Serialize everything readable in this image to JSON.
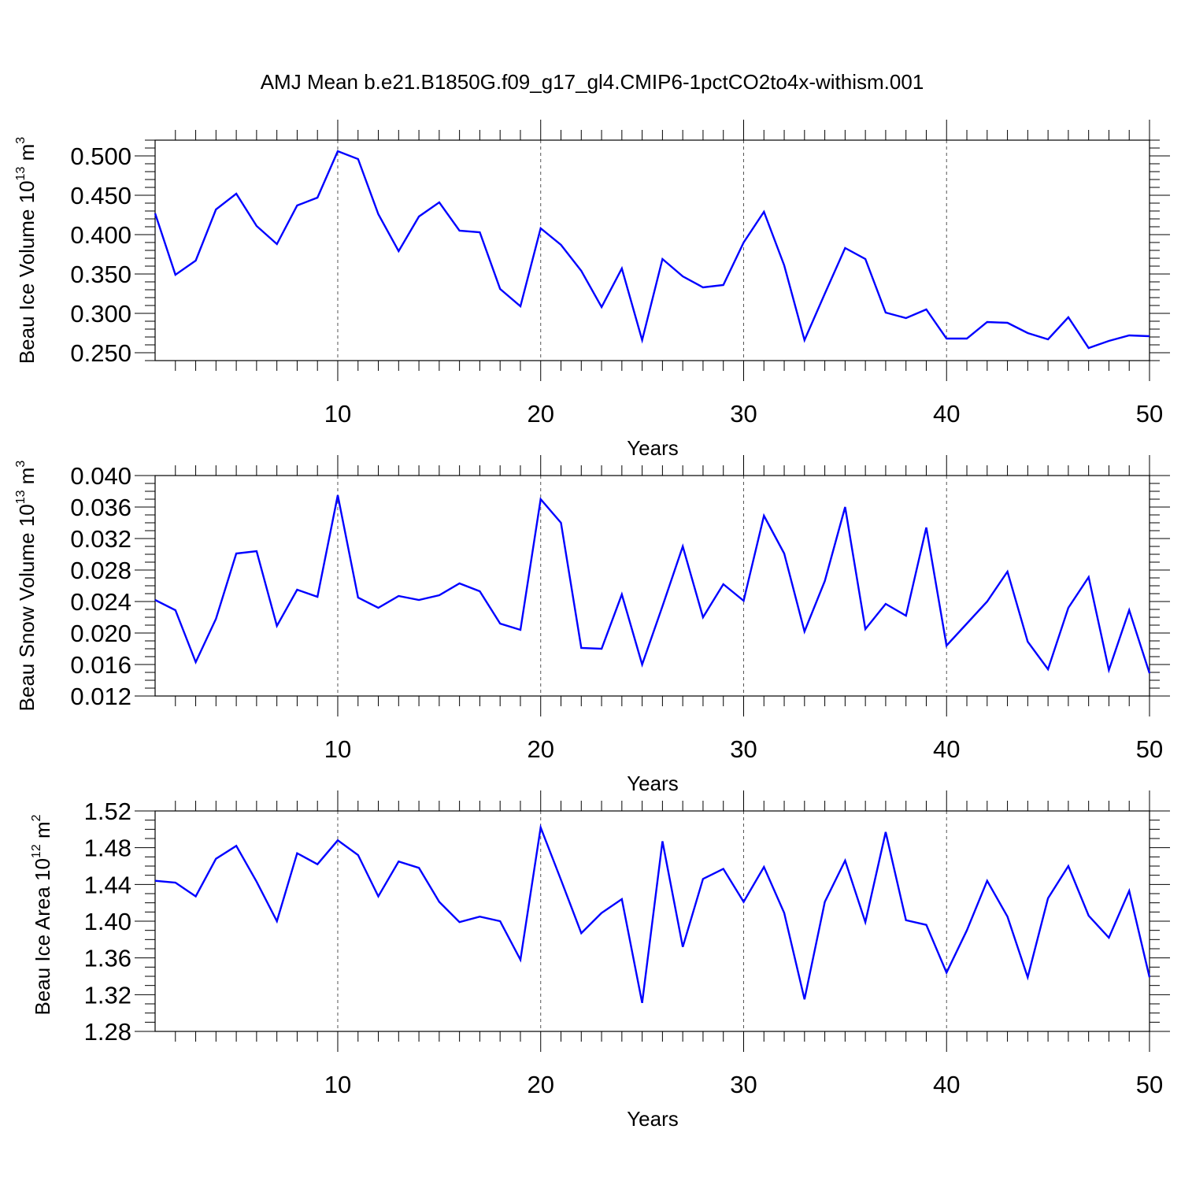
{
  "figure": {
    "title": "AMJ Mean b.e21.B1850G.f09_g17_gl4.CMIP6-1pctCO2to4x-withism.001",
    "line_color": "#0000FF"
  },
  "chart_data": [
    {
      "type": "line",
      "title": "",
      "xlabel": "Years",
      "ylabel": "Beau Ice Volume 10",
      "ylabel_sup": "13",
      "ylabel_unit": " m",
      "ylabel_unit_sup": "3",
      "xlim": [
        1,
        50
      ],
      "ylim": [
        0.24,
        0.52
      ],
      "xticks": [
        10,
        20,
        30,
        40,
        50
      ],
      "xtick_labels": [
        "10",
        "20",
        "30",
        "40",
        "50"
      ],
      "yticks": [
        0.25,
        0.3,
        0.35,
        0.4,
        0.45,
        0.5
      ],
      "ytick_labels": [
        "0.250",
        "0.300",
        "0.350",
        "0.400",
        "0.450",
        "0.500"
      ],
      "y_minor_step": 0.01,
      "vgrid_at": [
        10,
        20,
        30,
        40
      ],
      "x": [
        1,
        2,
        3,
        4,
        5,
        6,
        7,
        8,
        9,
        10,
        11,
        12,
        13,
        14,
        15,
        16,
        17,
        18,
        19,
        20,
        21,
        22,
        23,
        24,
        25,
        26,
        27,
        28,
        29,
        30,
        31,
        32,
        33,
        34,
        35,
        36,
        37,
        38,
        39,
        40,
        41,
        42,
        43,
        44,
        45,
        46,
        47,
        48,
        49,
        50
      ],
      "y": [
        0.427,
        0.349,
        0.367,
        0.432,
        0.452,
        0.411,
        0.388,
        0.437,
        0.447,
        0.506,
        0.496,
        0.426,
        0.379,
        0.423,
        0.441,
        0.405,
        0.403,
        0.331,
        0.309,
        0.408,
        0.387,
        0.354,
        0.308,
        0.357,
        0.266,
        0.369,
        0.347,
        0.333,
        0.336,
        0.39,
        0.429,
        0.361,
        0.266,
        0.325,
        0.383,
        0.369,
        0.301,
        0.294,
        0.305,
        0.268,
        0.268,
        0.289,
        0.288,
        0.275,
        0.267,
        0.295,
        0.256,
        0.265,
        0.272,
        0.271
      ]
    },
    {
      "type": "line",
      "title": "",
      "xlabel": "Years",
      "ylabel": "Beau Snow Volume 10",
      "ylabel_sup": "13",
      "ylabel_unit": " m",
      "ylabel_unit_sup": "3",
      "xlim": [
        1,
        50
      ],
      "ylim": [
        0.012,
        0.04
      ],
      "xticks": [
        10,
        20,
        30,
        40,
        50
      ],
      "xtick_labels": [
        "10",
        "20",
        "30",
        "40",
        "50"
      ],
      "yticks": [
        0.012,
        0.016,
        0.02,
        0.024,
        0.028,
        0.032,
        0.036,
        0.04
      ],
      "ytick_labels": [
        "0.012",
        "0.016",
        "0.020",
        "0.024",
        "0.028",
        "0.032",
        "0.036",
        "0.040"
      ],
      "y_minor_step": 0.001,
      "vgrid_at": [
        10,
        20,
        30,
        40
      ],
      "x": [
        1,
        2,
        3,
        4,
        5,
        6,
        7,
        8,
        9,
        10,
        11,
        12,
        13,
        14,
        15,
        16,
        17,
        18,
        19,
        20,
        21,
        22,
        23,
        24,
        25,
        26,
        27,
        28,
        29,
        30,
        31,
        32,
        33,
        34,
        35,
        36,
        37,
        38,
        39,
        40,
        41,
        42,
        43,
        44,
        45,
        46,
        47,
        48,
        49,
        50
      ],
      "y": [
        0.0242,
        0.0229,
        0.0163,
        0.0218,
        0.0301,
        0.0304,
        0.0209,
        0.0255,
        0.0246,
        0.0375,
        0.0245,
        0.0232,
        0.0247,
        0.0242,
        0.0248,
        0.0263,
        0.0253,
        0.0212,
        0.0204,
        0.037,
        0.034,
        0.0181,
        0.018,
        0.0249,
        0.016,
        0.0234,
        0.031,
        0.022,
        0.0262,
        0.0241,
        0.0349,
        0.0301,
        0.0202,
        0.0266,
        0.036,
        0.0205,
        0.0237,
        0.0222,
        0.0334,
        0.0184,
        0.0212,
        0.024,
        0.0278,
        0.0189,
        0.0154,
        0.0232,
        0.0271,
        0.0153,
        0.0229,
        0.0149
      ]
    },
    {
      "type": "line",
      "title": "",
      "xlabel": "Years",
      "ylabel": "Beau Ice Area 10",
      "ylabel_sup": "12",
      "ylabel_unit": " m",
      "ylabel_unit_sup": "2",
      "xlim": [
        1,
        50
      ],
      "ylim": [
        1.28,
        1.52
      ],
      "xticks": [
        10,
        20,
        30,
        40,
        50
      ],
      "xtick_labels": [
        "10",
        "20",
        "30",
        "40",
        "50"
      ],
      "yticks": [
        1.28,
        1.32,
        1.36,
        1.4,
        1.44,
        1.48,
        1.52
      ],
      "ytick_labels": [
        "1.28",
        "1.32",
        "1.36",
        "1.40",
        "1.44",
        "1.48",
        "1.52"
      ],
      "y_minor_step": 0.01,
      "vgrid_at": [
        10,
        20,
        30,
        40
      ],
      "x": [
        1,
        2,
        3,
        4,
        5,
        6,
        7,
        8,
        9,
        10,
        11,
        12,
        13,
        14,
        15,
        16,
        17,
        18,
        19,
        20,
        21,
        22,
        23,
        24,
        25,
        26,
        27,
        28,
        29,
        30,
        31,
        32,
        33,
        34,
        35,
        36,
        37,
        38,
        39,
        40,
        41,
        42,
        43,
        44,
        45,
        46,
        47,
        48,
        49,
        50
      ],
      "y": [
        1.444,
        1.442,
        1.427,
        1.468,
        1.482,
        1.443,
        1.4,
        1.474,
        1.462,
        1.488,
        1.472,
        1.427,
        1.465,
        1.458,
        1.421,
        1.399,
        1.405,
        1.4,
        1.358,
        1.502,
        1.445,
        1.387,
        1.409,
        1.424,
        1.311,
        1.487,
        1.372,
        1.446,
        1.457,
        1.421,
        1.459,
        1.409,
        1.315,
        1.421,
        1.466,
        1.399,
        1.497,
        1.401,
        1.396,
        1.344,
        1.39,
        1.444,
        1.405,
        1.339,
        1.425,
        1.46,
        1.406,
        1.382,
        1.433,
        1.339
      ]
    }
  ]
}
